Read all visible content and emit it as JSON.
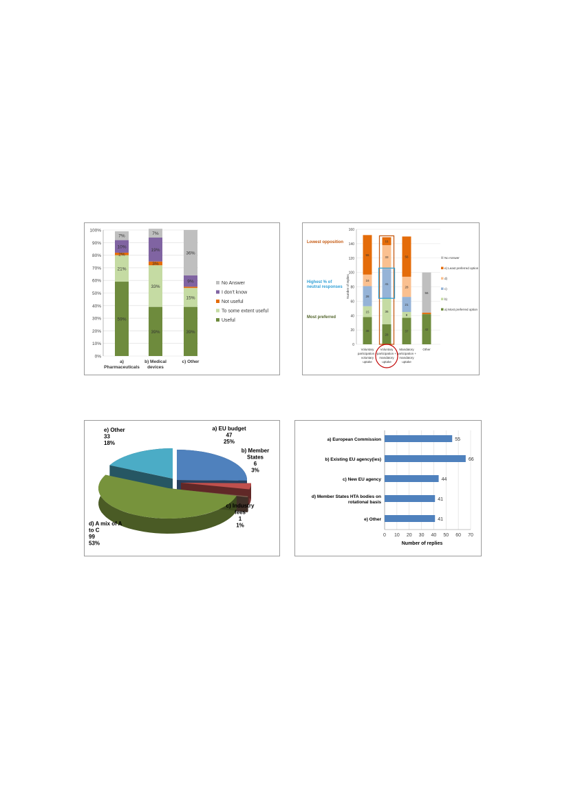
{
  "chart_data": [
    {
      "type": "bar",
      "stacked": true,
      "categories": [
        "a)\nPharmaceuticals",
        "b) Medical\ndevices",
        "c) Other"
      ],
      "ylim": [
        0,
        100
      ],
      "yticks": [
        "0%",
        "10%",
        "20%",
        "30%",
        "40%",
        "50%",
        "60%",
        "70%",
        "80%",
        "90%",
        "100%"
      ],
      "legend_position": "right",
      "series": [
        {
          "name": "Useful",
          "values": [
            59,
            39,
            39
          ],
          "labels": [
            "59%",
            "39%",
            "39%"
          ],
          "color": "#6e8b3d"
        },
        {
          "name": "To some extent useful",
          "values": [
            21,
            33,
            15
          ],
          "labels": [
            "21%",
            "33%",
            "15%"
          ],
          "color": "#c5dba3"
        },
        {
          "name": "Not useful",
          "values": [
            2,
            3,
            1
          ],
          "labels": [
            "2%",
            "3%",
            ""
          ],
          "color": "#e46c0a"
        },
        {
          "name": "I don't know",
          "values": [
            10,
            19,
            9
          ],
          "labels": [
            "10%",
            "19%",
            "9%"
          ],
          "color": "#8064a2"
        },
        {
          "name": "No Answer",
          "values": [
            7,
            7,
            36
          ],
          "labels": [
            "7%",
            "7%",
            "36%"
          ],
          "color": "#bfbfbf"
        }
      ]
    },
    {
      "type": "bar",
      "stacked": true,
      "categories": [
        "Voluntary\nparticipation +\nvoluntary\nuptake",
        "Voluntary\nparticipation +\nmandatory\nuptake",
        "Mandatory\nparticipation +\nmandatory\nuptake",
        "Other"
      ],
      "ylim": [
        0,
        160
      ],
      "yticks": [
        "0",
        "20",
        "40",
        "60",
        "80",
        "100",
        "120",
        "140",
        "160"
      ],
      "ylabel": "Number of replies",
      "legend_position": "right",
      "annotations": [
        "Lowest opposition",
        "Highest % of\nneutral responses",
        "Most preferred"
      ],
      "series": [
        {
          "name": "a) Most preferred option",
          "values": [
            38,
            28,
            37,
            42
          ],
          "labels": [
            "38",
            "28",
            "37",
            "42"
          ],
          "color": "#6e8b3d"
        },
        {
          "name": "b)",
          "values": [
            15,
            36,
            8,
            0
          ],
          "labels": [
            "15",
            "36",
            "8",
            ""
          ],
          "color": "#c5dba3"
        },
        {
          "name": "c)",
          "values": [
            28,
            41,
            21,
            0
          ],
          "labels": [
            "28",
            "41",
            "21",
            ""
          ],
          "color": "#95b3d7"
        },
        {
          "name": "d)",
          "values": [
            16,
            33,
            28,
            0
          ],
          "labels": [
            "16",
            "33",
            "28",
            ""
          ],
          "color": "#fac090"
        },
        {
          "name": "e) Least preferred option",
          "values": [
            55,
            11,
            56,
            2
          ],
          "labels": [
            "55",
            "11",
            "56",
            ""
          ],
          "color": "#e46c0a"
        },
        {
          "name": "No Answer",
          "values": [
            0,
            0,
            0,
            56
          ],
          "labels": [
            "",
            "",
            "",
            "56"
          ],
          "color": "#bfbfbf"
        }
      ]
    },
    {
      "type": "pie",
      "slices": [
        {
          "label": "a) EU budget",
          "count": "47",
          "pct": "25%",
          "value": 47,
          "color": "#4f81bd"
        },
        {
          "label": "b) Member\nStates",
          "count": "6",
          "pct": "3%",
          "value": 6,
          "color": "#c0504d"
        },
        {
          "label": "c) Industry\nfees",
          "count": "1",
          "pct": "1%",
          "value": 1,
          "color": "#7f5f4f"
        },
        {
          "label": "d) A mix of A\nto C",
          "count": "99",
          "pct": "53%",
          "value": 99,
          "color": "#77933c"
        },
        {
          "label": "e) Other",
          "count": "33",
          "pct": "18%",
          "value": 33,
          "color": "#4bacc6"
        }
      ]
    },
    {
      "type": "bar",
      "orientation": "horizontal",
      "categories": [
        "a) European Commission",
        "b) Existing EU agency(ies)",
        "c) New EU agency",
        "d) Member States HTA bodies on\nrotational basis",
        "e) Other"
      ],
      "values": [
        55,
        66,
        44,
        41,
        41
      ],
      "xlim": [
        0,
        70
      ],
      "xticks": [
        "0",
        "10",
        "20",
        "30",
        "40",
        "50",
        "60",
        "70"
      ],
      "xlabel": "Number of replies",
      "color": "#4f81bd"
    }
  ]
}
